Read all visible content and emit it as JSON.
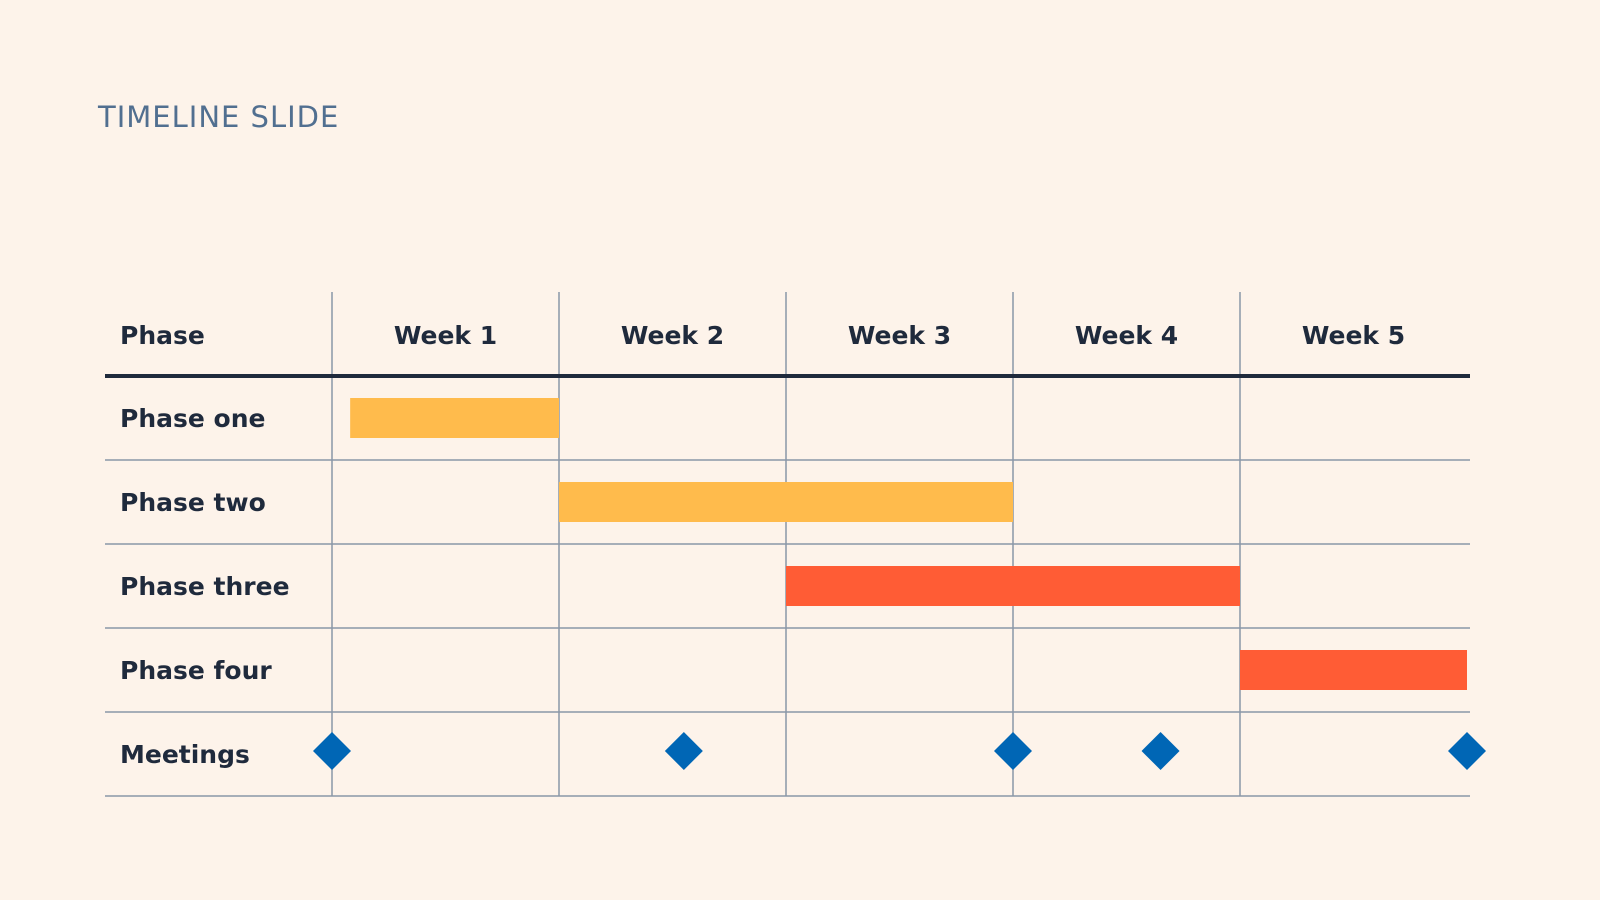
{
  "slide": {
    "title": "TIMELINE SLIDE"
  },
  "colors": {
    "background": "#fdf3ea",
    "grid": "#8a97a8",
    "header_rule": "#1f2a3c",
    "text": "#1f2a3c",
    "title": "#516f90",
    "bar_yellow": "#ffbb4c",
    "bar_orange": "#ff5c35",
    "milestone": "#0066b5"
  },
  "chart_data": {
    "type": "gantt",
    "title": "TIMELINE SLIDE",
    "row_header": "Phase",
    "columns": [
      "Week 1",
      "Week 2",
      "Week 3",
      "Week 4",
      "Week 5"
    ],
    "x_unit": "weeks",
    "xlim": [
      0,
      5
    ],
    "tasks": [
      {
        "label": "Phase one",
        "start": 0.08,
        "end": 1.0,
        "color": "#ffbb4c"
      },
      {
        "label": "Phase two",
        "start": 1.0,
        "end": 3.0,
        "color": "#ffbb4c"
      },
      {
        "label": "Phase three",
        "start": 2.0,
        "end": 4.0,
        "color": "#ff5c35"
      },
      {
        "label": "Phase four",
        "start": 4.0,
        "end": 5.0,
        "color": "#ff5c35"
      }
    ],
    "milestone_row": {
      "label": "Meetings",
      "points": [
        0.0,
        1.55,
        3.0,
        3.65,
        5.0
      ],
      "color": "#0066b5"
    }
  }
}
